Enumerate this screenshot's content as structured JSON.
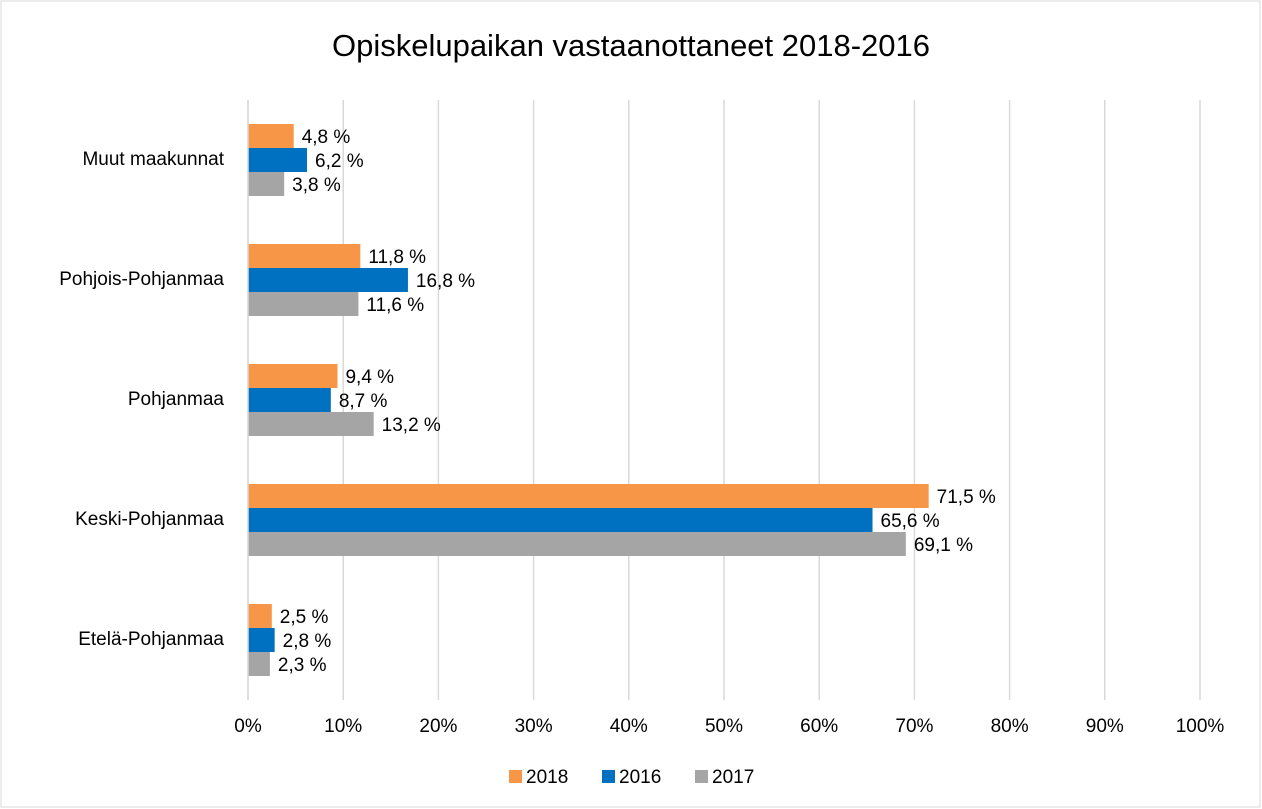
{
  "chart_data": {
    "type": "hbar",
    "title": "Opiskelupaikan vastaanottaneet 2018-2016",
    "categories": [
      "Muut maakunnat",
      "Pohjois-Pohjanmaa",
      "Pohjanmaa",
      "Keski-Pohjanmaa",
      "Etelä-Pohjanmaa"
    ],
    "series": [
      {
        "name": "2018",
        "color": "#f79646",
        "values": [
          4.8,
          11.8,
          9.4,
          71.5,
          2.5
        ],
        "value_labels": [
          "4,8 %",
          "11,8 %",
          "9,4 %",
          "71,5 %",
          "2,5 %"
        ]
      },
      {
        "name": "2016",
        "color": "#0070c0",
        "values": [
          6.2,
          16.8,
          8.7,
          65.6,
          2.8
        ],
        "value_labels": [
          "6,2 %",
          "16,8 %",
          "8,7 %",
          "65,6 %",
          "2,8 %"
        ]
      },
      {
        "name": "2017",
        "color": "#a5a5a5",
        "values": [
          3.8,
          11.6,
          13.2,
          69.1,
          2.3
        ],
        "value_labels": [
          "3,8 %",
          "11,6 %",
          "13,2 %",
          "69,1 %",
          "2,3 %"
        ]
      }
    ],
    "xlim": [
      0,
      100
    ],
    "xticks": [
      {
        "value": 0,
        "label": "0%"
      },
      {
        "value": 10,
        "label": "10%"
      },
      {
        "value": 20,
        "label": "20%"
      },
      {
        "value": 30,
        "label": "30%"
      },
      {
        "value": 40,
        "label": "40%"
      },
      {
        "value": 50,
        "label": "50%"
      },
      {
        "value": 60,
        "label": "60%"
      },
      {
        "value": 70,
        "label": "70%"
      },
      {
        "value": 80,
        "label": "80%"
      },
      {
        "value": 90,
        "label": "90%"
      },
      {
        "value": 100,
        "label": "100%"
      }
    ],
    "grid": true,
    "legend": "bottom"
  }
}
